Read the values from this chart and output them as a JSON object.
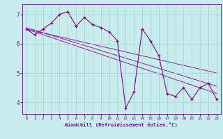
{
  "xlabel": "Windchill (Refroidissement éolien,°C)",
  "background_color": "#c8ecec",
  "line_color": "#880088",
  "xmin": -0.5,
  "xmax": 23.5,
  "ymin": 3.6,
  "ymax": 7.35,
  "hours": [
    0,
    1,
    2,
    3,
    4,
    5,
    6,
    7,
    8,
    9,
    10,
    11,
    12,
    13,
    14,
    15,
    16,
    17,
    18,
    19,
    20,
    21,
    22,
    23
  ],
  "values": [
    6.5,
    6.3,
    6.5,
    6.7,
    7.0,
    7.1,
    6.6,
    6.9,
    6.65,
    6.55,
    6.4,
    6.1,
    3.8,
    4.35,
    6.5,
    6.1,
    5.6,
    4.3,
    4.2,
    4.5,
    4.1,
    4.5,
    4.65,
    4.1
  ],
  "yticks": [
    4,
    5,
    6,
    7
  ],
  "xticks": [
    0,
    1,
    2,
    3,
    4,
    5,
    6,
    7,
    8,
    9,
    10,
    11,
    12,
    13,
    14,
    15,
    16,
    17,
    18,
    19,
    20,
    21,
    22,
    23
  ],
  "grid_color": "#a0d8d8",
  "trend_lines": [
    [
      6.55,
      4.55
    ],
    [
      6.5,
      4.3
    ],
    [
      6.5,
      5.0
    ]
  ],
  "spine_color": "#7700aa",
  "tick_label_color": "#7700aa",
  "xlabel_color": "#7700aa"
}
